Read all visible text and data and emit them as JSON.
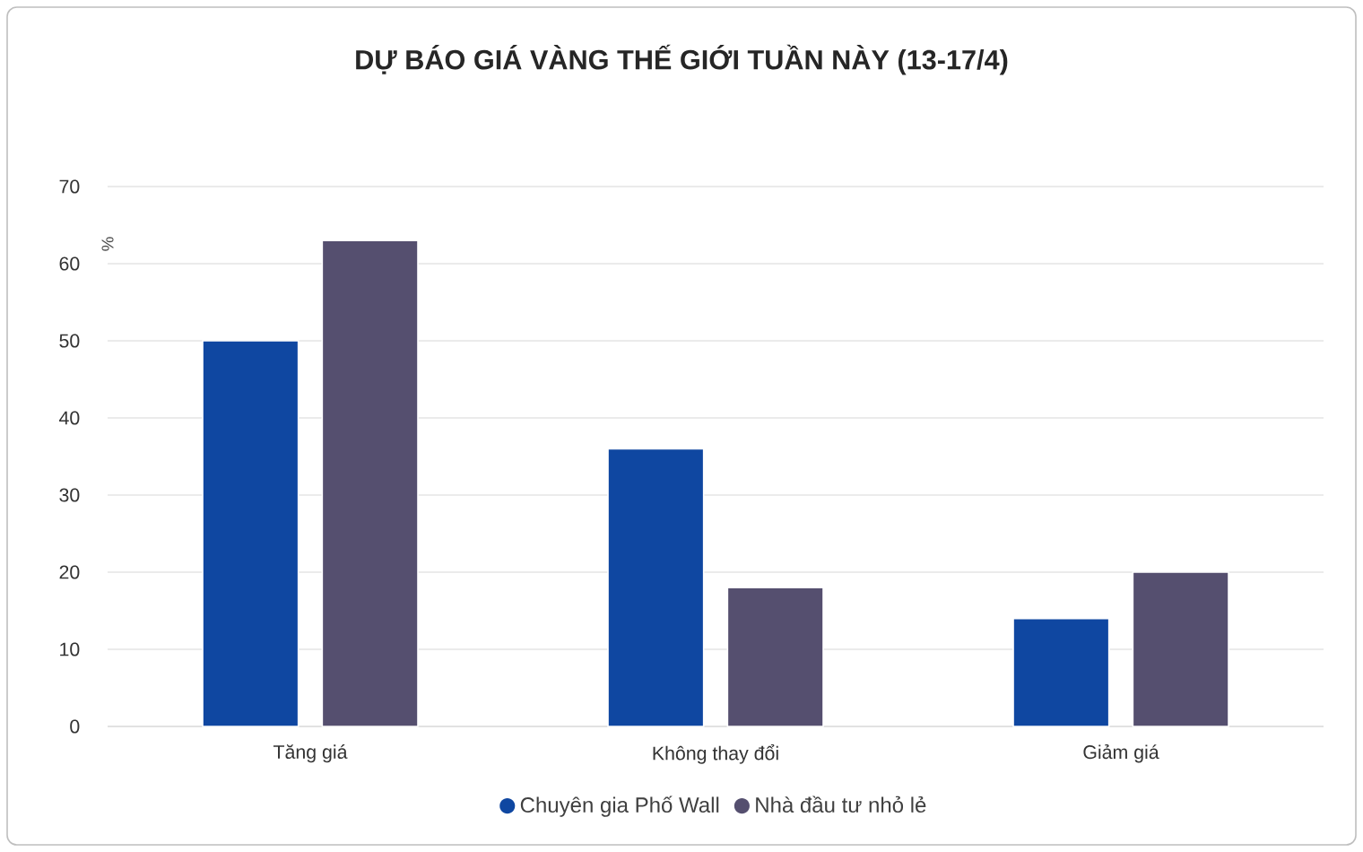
{
  "chart_data": {
    "type": "bar",
    "title": "DỰ BÁO GIÁ VÀNG THẾ GIỚI TUẦN NÀY (13-17/4)",
    "ylabel": "%",
    "categories": [
      "Tăng giá",
      "Không thay đổi",
      "Giảm giá"
    ],
    "series": [
      {
        "name": "Chuyên gia Phố Wall",
        "color": "#0f47a1",
        "values": [
          50,
          36,
          14
        ]
      },
      {
        "name": "Nhà đầu tư nhỏ lẻ",
        "color": "#554f6f",
        "values": [
          63,
          18,
          20
        ]
      }
    ],
    "ylim": [
      0,
      70
    ],
    "yticks": [
      0,
      10,
      20,
      30,
      40,
      50,
      60,
      70
    ],
    "grid": "y",
    "legend": "bottom"
  }
}
